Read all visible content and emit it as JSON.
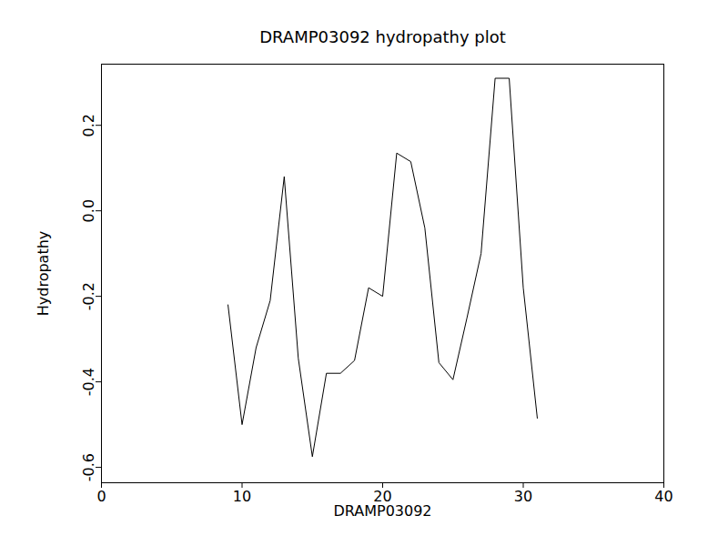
{
  "chart_data": {
    "type": "line",
    "title": "DRAMP03092 hydropathy plot",
    "x_label": "DRAMP03092",
    "y_label": "Hydropathy",
    "x": [
      9,
      10,
      11,
      12,
      13,
      14,
      15,
      16,
      17,
      18,
      19,
      20,
      21,
      22,
      23,
      24,
      25,
      26,
      27,
      28,
      29,
      30,
      31
    ],
    "values": [
      -0.22,
      -0.5,
      -0.32,
      -0.21,
      0.08,
      -0.345,
      -0.575,
      -0.38,
      -0.38,
      -0.35,
      -0.18,
      -0.2,
      0.135,
      0.115,
      -0.04,
      -0.355,
      -0.395,
      -0.25,
      -0.1,
      0.31,
      0.31,
      -0.18,
      -0.485
    ],
    "color": "#000000",
    "xlim": [
      0,
      40
    ],
    "xticks": [
      0,
      10,
      20,
      30,
      40
    ],
    "ylim": [
      -0.636,
      0.343
    ],
    "yticks": [
      -0.6,
      -0.4,
      -0.2,
      {
        "value": 0,
        "label": "0.0"
      },
      0.2
    ],
    "grid": false
  }
}
